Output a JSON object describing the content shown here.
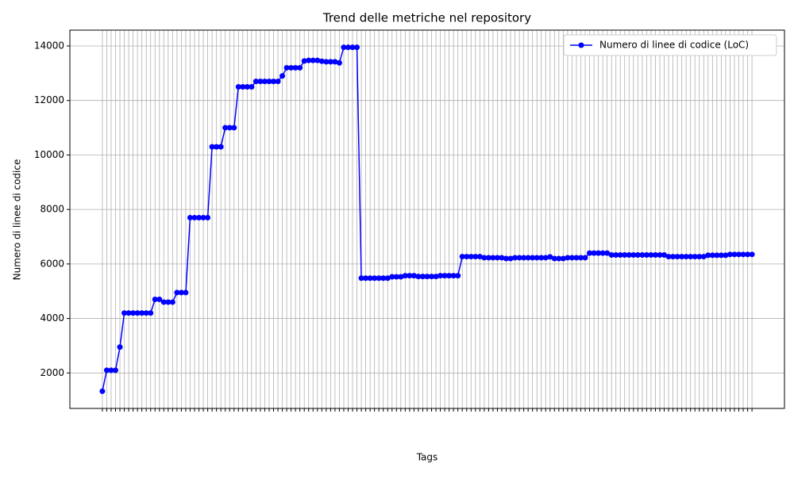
{
  "chart_data": {
    "type": "line",
    "title": "Trend delle metriche nel repository",
    "x_label": "Tags",
    "y_label": "Numero di linee di codice",
    "legend": "upper right",
    "grid": true,
    "categories": [
      null,
      null,
      null,
      null,
      null,
      null,
      null,
      null,
      null,
      null,
      null,
      null,
      null,
      null,
      null,
      null,
      null,
      null,
      null,
      null,
      null,
      null,
      null,
      null,
      null,
      null,
      null,
      null,
      null,
      null,
      null,
      null,
      null,
      null,
      null,
      null,
      null,
      null,
      null,
      null,
      null,
      null,
      null,
      null,
      null,
      null,
      null,
      null,
      null,
      null,
      null,
      null,
      null,
      null,
      null,
      null,
      null,
      null,
      null,
      null,
      null,
      null,
      null,
      null,
      null,
      null,
      null,
      null,
      null,
      null,
      null,
      null,
      null,
      null,
      null,
      null,
      null,
      null,
      null,
      null,
      null,
      null,
      null,
      null,
      null,
      null,
      null,
      null,
      null,
      null,
      null,
      null,
      null,
      null,
      null,
      null,
      null,
      null,
      null,
      null,
      null,
      null,
      null,
      null,
      null,
      null,
      null,
      null,
      null,
      null,
      null,
      null,
      null,
      null,
      null,
      null,
      null,
      null,
      null,
      null,
      null,
      null,
      null,
      null,
      null,
      null,
      null,
      null,
      null,
      null,
      null,
      null,
      null,
      null,
      null,
      null,
      null,
      null,
      null,
      null,
      null,
      null,
      null,
      null,
      null,
      null,
      null,
      null,
      null
    ],
    "series": [
      {
        "name": "Numero di linee di codice (LoC)",
        "color": "#0000ff",
        "values": [
          1330,
          2100,
          2100,
          2100,
          2950,
          4200,
          4200,
          4200,
          4200,
          4200,
          4200,
          4200,
          4700,
          4700,
          4600,
          4600,
          4600,
          4950,
          4950,
          4950,
          7700,
          7700,
          7700,
          7700,
          7700,
          10300,
          10300,
          10300,
          11000,
          11000,
          11000,
          12500,
          12500,
          12500,
          12500,
          12700,
          12700,
          12700,
          12700,
          12700,
          12700,
          12900,
          13200,
          13200,
          13200,
          13200,
          13450,
          13470,
          13470,
          13470,
          13440,
          13420,
          13420,
          13420,
          13380,
          13950,
          13950,
          13950,
          13950,
          5480,
          5480,
          5480,
          5480,
          5480,
          5480,
          5480,
          5530,
          5530,
          5530,
          5570,
          5570,
          5570,
          5540,
          5540,
          5540,
          5540,
          5540,
          5570,
          5570,
          5570,
          5570,
          5570,
          6270,
          6270,
          6270,
          6270,
          6270,
          6230,
          6230,
          6230,
          6230,
          6230,
          6200,
          6200,
          6230,
          6230,
          6230,
          6230,
          6230,
          6230,
          6230,
          6230,
          6260,
          6200,
          6200,
          6200,
          6230,
          6230,
          6230,
          6230,
          6230,
          6400,
          6400,
          6400,
          6400,
          6400,
          6330,
          6330,
          6330,
          6330,
          6330,
          6330,
          6330,
          6330,
          6330,
          6330,
          6330,
          6330,
          6330,
          6270,
          6270,
          6270,
          6270,
          6270,
          6270,
          6270,
          6270,
          6270,
          6320,
          6320,
          6320,
          6320,
          6320,
          6350,
          6350,
          6350,
          6350,
          6350,
          6350
        ]
      }
    ],
    "xlim": [
      -7.4,
      155.4
    ],
    "ylim": [
      699,
      14581
    ],
    "yticks": [
      2000,
      4000,
      6000,
      8000,
      10000,
      12000,
      14000
    ]
  }
}
